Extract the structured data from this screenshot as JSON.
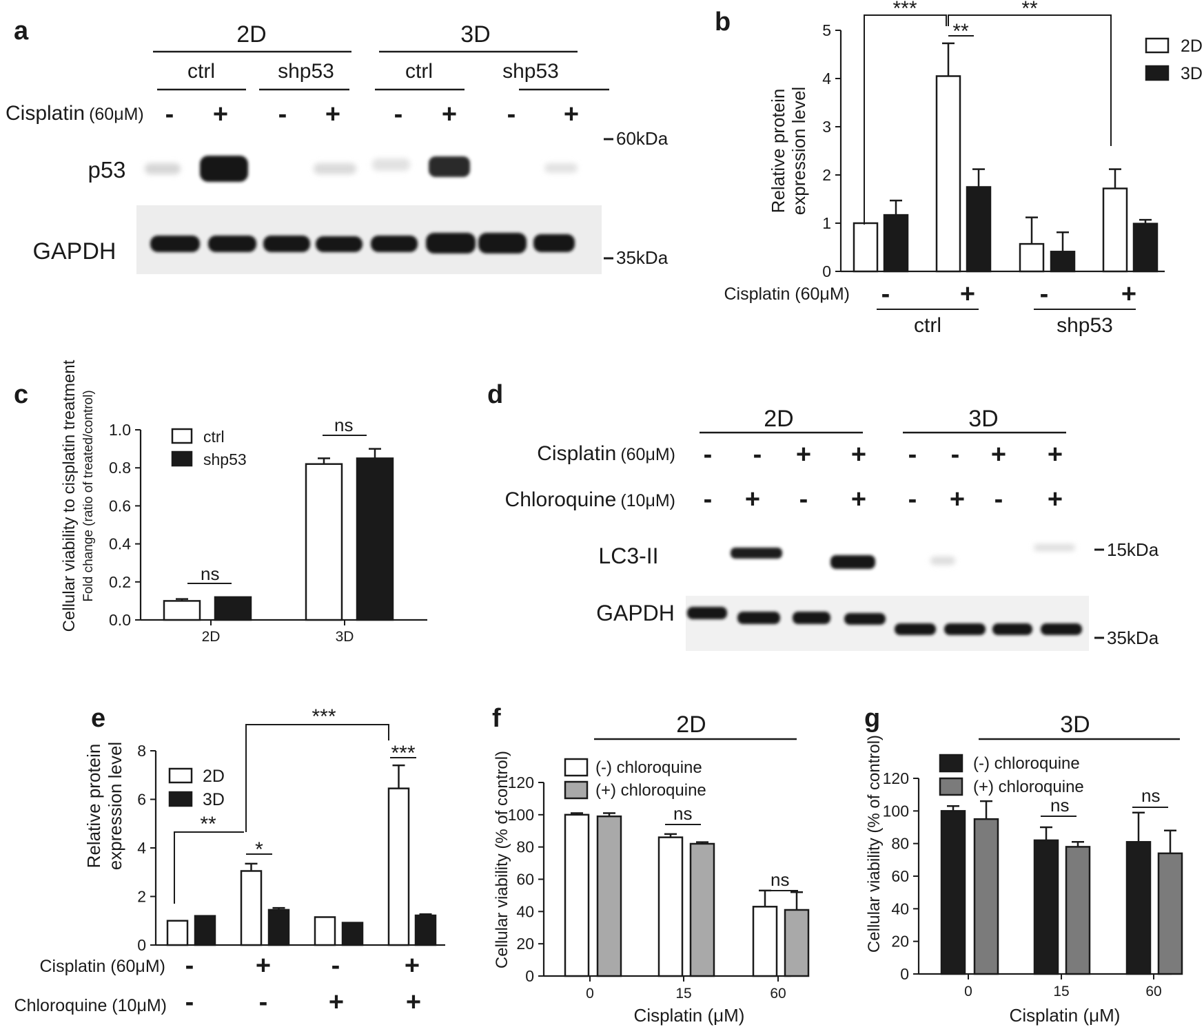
{
  "panels": {
    "a": {
      "letter": "a",
      "group_labels": [
        "2D",
        "3D"
      ],
      "sub_labels": [
        "ctrl",
        "shp53",
        "ctrl",
        "shp53"
      ],
      "treatment_name": "Cisplatin",
      "treatment_conc": "(60μM)",
      "treatment_signs": [
        "-",
        "+",
        "-",
        "+",
        "-",
        "+",
        "-",
        "+"
      ],
      "blot_labels": [
        "p53",
        "GAPDH"
      ],
      "markers": [
        "60kDa",
        "35kDa"
      ]
    },
    "d": {
      "letter": "d",
      "group_labels": [
        "2D",
        "3D"
      ],
      "row1_name": "Cisplatin",
      "row1_conc": "(60μM)",
      "row1_signs": [
        "-",
        "-",
        "+",
        "+",
        "-",
        "-",
        "+",
        "+"
      ],
      "row2_name": "Chloroquine",
      "row2_conc": "(10μM)",
      "row2_signs": [
        "-",
        "+",
        "-",
        "+",
        "-",
        "+",
        "-",
        "+"
      ],
      "blot_labels": [
        "LC3-II",
        "GAPDH"
      ],
      "markers": [
        "15kDa",
        "35kDa"
      ]
    }
  },
  "chart_data": [
    {
      "panel": "b",
      "type": "bar",
      "ylabel": [
        "Relative protein",
        "expression level"
      ],
      "ylim": [
        0,
        5
      ],
      "yticks": [
        "0",
        "1",
        "2",
        "3",
        "4",
        "5"
      ],
      "groups": [
        "ctrl",
        "shp53"
      ],
      "condition_label": "Cisplatin (60μM)",
      "condition_signs": [
        "-",
        "+",
        "-",
        "+"
      ],
      "series": [
        {
          "name": "2D",
          "values": [
            1.0,
            4.05,
            0.57,
            1.72
          ],
          "errors": [
            0,
            0.68,
            0.55,
            0.4
          ]
        },
        {
          "name": "3D",
          "values": [
            1.17,
            1.75,
            0.41,
            0.99
          ],
          "errors": [
            0.3,
            0.37,
            0.4,
            0.08
          ]
        }
      ],
      "significance": [
        "***",
        "**",
        "**"
      ],
      "legend_position": "top-right"
    },
    {
      "panel": "c",
      "type": "bar",
      "ylabel": "Cellular viability to cisplatin treatment",
      "ylabel2": "Fold change (ratio of treated/control)",
      "ylim": [
        0,
        1.0
      ],
      "yticks": [
        "0.0",
        "0.2",
        "0.4",
        "0.6",
        "0.8",
        "1.0"
      ],
      "categories": [
        "2D",
        "3D"
      ],
      "series": [
        {
          "name": "ctrl",
          "values": [
            0.1,
            0.82
          ],
          "errors": [
            0.01,
            0.03
          ]
        },
        {
          "name": "shp53",
          "values": [
            0.12,
            0.85
          ],
          "errors": [
            0,
            0.05
          ]
        }
      ],
      "significance": [
        "ns",
        "ns"
      ],
      "legend_position": "top-left"
    },
    {
      "panel": "e",
      "type": "bar",
      "ylabel": [
        "Relative protein",
        "expression level"
      ],
      "ylim": [
        0,
        8
      ],
      "yticks": [
        "0",
        "2",
        "4",
        "6",
        "8"
      ],
      "row_labels": [
        "Cisplatin (60μM)",
        "Chloroquine (10μM)"
      ],
      "cisplatin_signs": [
        "-",
        "+",
        "-",
        "+"
      ],
      "chloroquine_signs": [
        "-",
        "-",
        "+",
        "+"
      ],
      "series": [
        {
          "name": "2D",
          "values": [
            1.0,
            3.05,
            1.15,
            6.45
          ],
          "errors": [
            0,
            0.3,
            0,
            0.95
          ]
        },
        {
          "name": "3D",
          "values": [
            1.2,
            1.45,
            0.92,
            1.22
          ],
          "errors": [
            0,
            0.08,
            0,
            0.05
          ]
        }
      ],
      "significance": [
        "**",
        "***",
        "*",
        "***"
      ],
      "legend_position": "top-left"
    },
    {
      "panel": "f",
      "type": "bar",
      "title": "2D",
      "xlabel": "Cisplatin (μM)",
      "ylabel": "Cellular viability (% of control)",
      "ylim": [
        0,
        120
      ],
      "yticks": [
        "0",
        "20",
        "40",
        "60",
        "80",
        "100",
        "120"
      ],
      "categories": [
        "0",
        "15",
        "60"
      ],
      "series": [
        {
          "name": "(-) chloroquine",
          "values": [
            100,
            86,
            43
          ],
          "errors": [
            1,
            2,
            10
          ]
        },
        {
          "name": "(+) chloroquine",
          "values": [
            99,
            82,
            41
          ],
          "errors": [
            2,
            1,
            11
          ]
        }
      ],
      "significance": [
        "ns",
        "ns"
      ],
      "colors": [
        "#ffffff",
        "#a9a9a9"
      ],
      "legend_position": "top-left"
    },
    {
      "panel": "g",
      "type": "bar",
      "title": "3D",
      "xlabel": "Cisplatin (μM)",
      "ylabel": "Cellular viability (% of control)",
      "ylim": [
        0,
        120
      ],
      "yticks": [
        "0",
        "20",
        "40",
        "60",
        "80",
        "100",
        "120"
      ],
      "categories": [
        "0",
        "15",
        "60"
      ],
      "series": [
        {
          "name": "(-) chloroquine",
          "values": [
            100,
            82,
            81
          ],
          "errors": [
            3,
            8,
            18
          ]
        },
        {
          "name": "(+) chloroquine",
          "values": [
            95,
            78,
            74
          ],
          "errors": [
            11,
            3,
            14
          ]
        }
      ],
      "significance": [
        "ns",
        "ns"
      ],
      "colors": [
        "#1c1c1c",
        "#7b7b7b"
      ],
      "legend_position": "top-left"
    }
  ]
}
